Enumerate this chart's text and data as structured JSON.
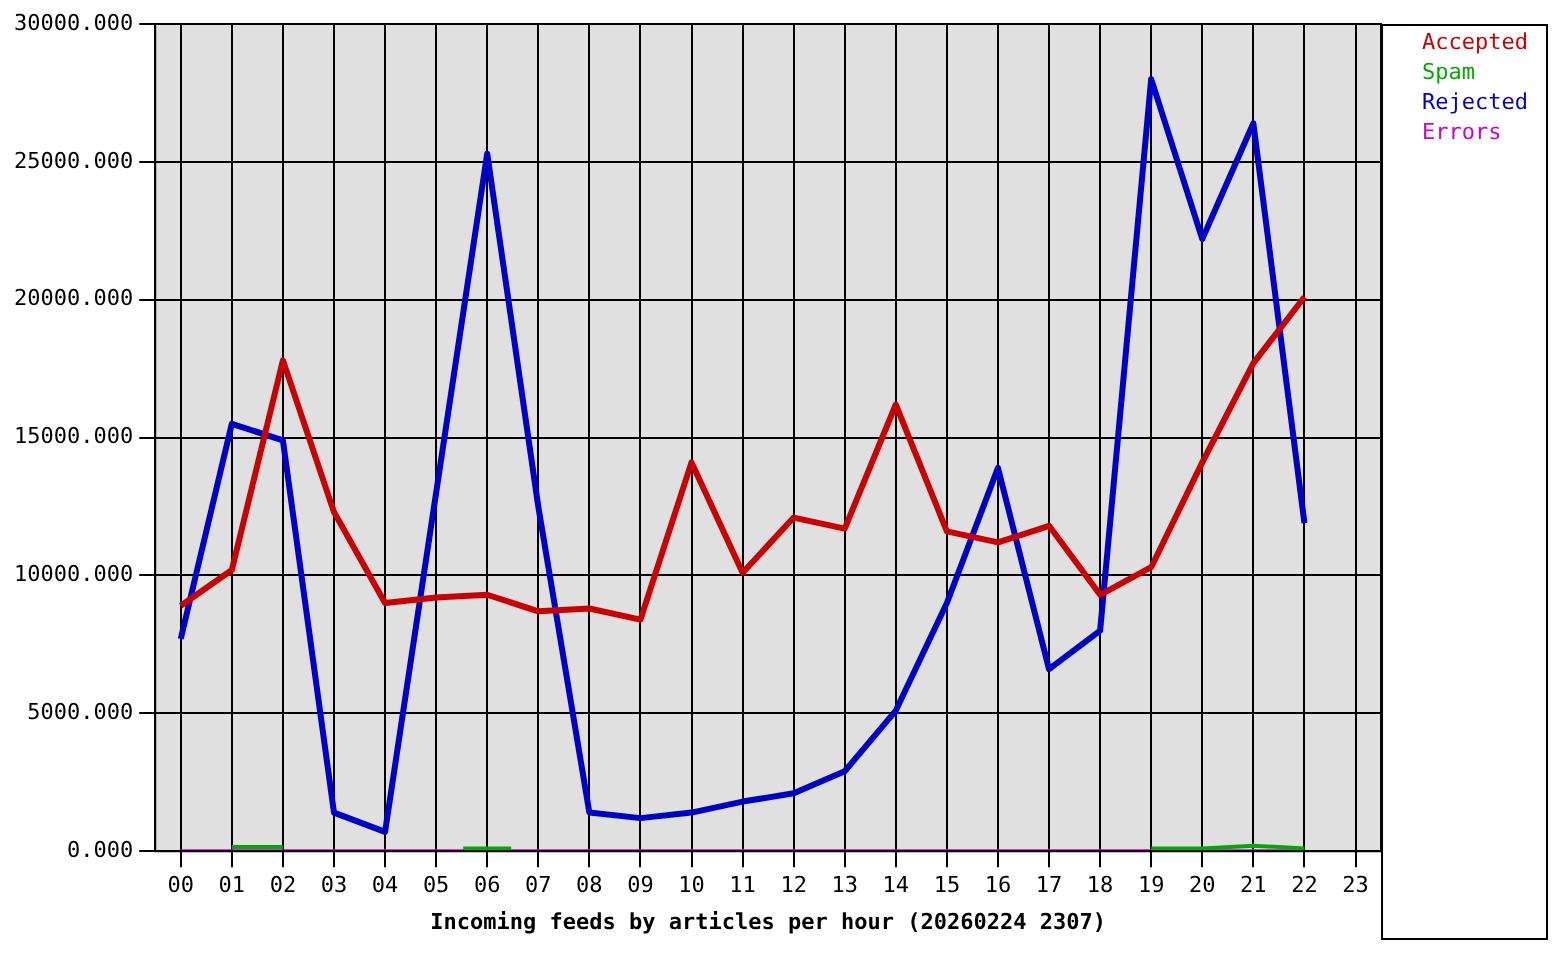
{
  "chart_data": {
    "type": "line",
    "xlabel": "Incoming feeds by articles per hour (20260224 2307)",
    "categories": [
      "00",
      "01",
      "02",
      "03",
      "04",
      "05",
      "06",
      "07",
      "08",
      "09",
      "10",
      "11",
      "12",
      "13",
      "14",
      "15",
      "16",
      "17",
      "18",
      "19",
      "20",
      "21",
      "22",
      "23"
    ],
    "series": [
      {
        "name": "Accepted",
        "color": "#cc0000",
        "values": [
          8900,
          10200,
          17800,
          12300,
          9000,
          9200,
          9300,
          8700,
          8800,
          8400,
          14100,
          10100,
          12100,
          11700,
          16200,
          11600,
          11200,
          11800,
          9300,
          10300,
          14100,
          17700,
          20100,
          null
        ]
      },
      {
        "name": "Spam",
        "color": "#00aa00",
        "values": [
          null,
          150,
          150,
          null,
          null,
          null,
          100,
          null,
          null,
          null,
          null,
          null,
          null,
          null,
          null,
          null,
          null,
          null,
          null,
          100,
          100,
          200,
          100,
          null
        ]
      },
      {
        "name": "Rejected",
        "color": "#0000cc",
        "values": [
          7700,
          15500,
          14900,
          1400,
          700,
          13000,
          25300,
          12500,
          1400,
          1200,
          1400,
          1800,
          2100,
          2900,
          5100,
          9000,
          13900,
          6600,
          8000,
          28000,
          22200,
          26400,
          11900,
          null
        ]
      },
      {
        "name": "Errors",
        "color": "#cc00cc",
        "values": [
          0,
          0,
          0,
          0,
          0,
          0,
          0,
          0,
          0,
          0,
          0,
          0,
          0,
          0,
          0,
          0,
          0,
          0,
          0,
          0,
          0,
          0,
          0,
          null
        ]
      }
    ],
    "ylim": [
      0,
      30000
    ],
    "yticks": [
      {
        "value": 0,
        "label": "0.000"
      },
      {
        "value": 5000,
        "label": "5000.000"
      },
      {
        "value": 10000,
        "label": "10000.000"
      },
      {
        "value": 15000,
        "label": "15000.000"
      },
      {
        "value": 20000,
        "label": "20000.000"
      },
      {
        "value": 25000,
        "label": "25000.000"
      },
      {
        "value": 30000,
        "label": "30000.000"
      }
    ],
    "grid": true,
    "legend": "top right",
    "marker": "none",
    "line_style": "solid"
  }
}
